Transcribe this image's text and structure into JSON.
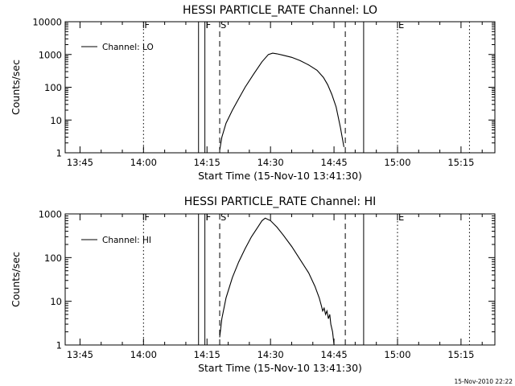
{
  "footer_timestamp": "15-Nov-2010 22:22",
  "chart_data": [
    {
      "type": "line",
      "title": "HESSI PARTICLE_RATE Channel: LO",
      "xlabel": "Start Time (15-Nov-10 13:41:30)",
      "ylabel": "Counts/sec",
      "x_ticks": [
        "13:45",
        "14:00",
        "14:15",
        "14:30",
        "14:45",
        "15:00",
        "15:15"
      ],
      "y_ticks": [
        "1",
        "10",
        "100",
        "1000",
        "10000"
      ],
      "y_scale": "log",
      "xlim": [
        "13:41:30",
        "15:23:00"
      ],
      "ylim": [
        1,
        10000
      ],
      "legend": {
        "label": "Channel: LO",
        "placement": "top-left"
      },
      "markers": [
        {
          "label": "F",
          "x": "14:00:00",
          "style": "dotted"
        },
        {
          "label": "",
          "x": "14:13:00",
          "style": "solid"
        },
        {
          "label": "F",
          "x": "14:14:30",
          "style": "solid"
        },
        {
          "label": "S",
          "x": "14:18:00",
          "style": "dashed"
        },
        {
          "label": "",
          "x": "14:47:40",
          "style": "dashed"
        },
        {
          "label": "",
          "x": "14:52:00",
          "style": "solid"
        },
        {
          "label": "E",
          "x": "15:00:00",
          "style": "dotted"
        },
        {
          "label": "",
          "x": "15:17:00",
          "style": "dotted"
        }
      ],
      "series": [
        {
          "name": "Channel: LO",
          "points": [
            [
              "14:18:00",
              1.2
            ],
            [
              "14:18:30",
              3
            ],
            [
              "14:19:30",
              8
            ],
            [
              "14:21:00",
              20
            ],
            [
              "14:22:30",
              45
            ],
            [
              "14:24:00",
              100
            ],
            [
              "14:26:00",
              250
            ],
            [
              "14:28:00",
              600
            ],
            [
              "14:29:30",
              1000
            ],
            [
              "14:30:30",
              1100
            ],
            [
              "14:31:30",
              1050
            ],
            [
              "14:33:00",
              950
            ],
            [
              "14:35:00",
              820
            ],
            [
              "14:37:00",
              650
            ],
            [
              "14:39:00",
              480
            ],
            [
              "14:41:00",
              330
            ],
            [
              "14:42:30",
              200
            ],
            [
              "14:43:30",
              120
            ],
            [
              "14:44:30",
              60
            ],
            [
              "14:45:30",
              25
            ],
            [
              "14:46:30",
              6
            ],
            [
              "14:47:20",
              1.5
            ]
          ]
        }
      ]
    },
    {
      "type": "line",
      "title": "HESSI PARTICLE_RATE Channel: HI",
      "xlabel": "Start Time (15-Nov-10 13:41:30)",
      "ylabel": "Counts/sec",
      "x_ticks": [
        "13:45",
        "14:00",
        "14:15",
        "14:30",
        "14:45",
        "15:00",
        "15:15"
      ],
      "y_ticks": [
        "1",
        "10",
        "100",
        "1000"
      ],
      "y_scale": "log",
      "xlim": [
        "13:41:30",
        "15:23:00"
      ],
      "ylim": [
        1,
        1000
      ],
      "legend": {
        "label": "Channel: HI",
        "placement": "top-left"
      },
      "markers": [
        {
          "label": "F",
          "x": "14:00:00",
          "style": "dotted"
        },
        {
          "label": "",
          "x": "14:13:00",
          "style": "solid"
        },
        {
          "label": "F",
          "x": "14:14:30",
          "style": "solid"
        },
        {
          "label": "S",
          "x": "14:18:00",
          "style": "dashed"
        },
        {
          "label": "",
          "x": "14:47:40",
          "style": "dashed"
        },
        {
          "label": "",
          "x": "14:52:00",
          "style": "solid"
        },
        {
          "label": "E",
          "x": "15:00:00",
          "style": "dotted"
        },
        {
          "label": "",
          "x": "15:17:00",
          "style": "dotted"
        }
      ],
      "series": [
        {
          "name": "Channel: HI",
          "points": [
            [
              "14:18:00",
              1.5
            ],
            [
              "14:18:30",
              4
            ],
            [
              "14:19:30",
              12
            ],
            [
              "14:21:00",
              35
            ],
            [
              "14:22:30",
              80
            ],
            [
              "14:24:00",
              160
            ],
            [
              "14:25:30",
              300
            ],
            [
              "14:27:00",
              500
            ],
            [
              "14:28:00",
              700
            ],
            [
              "14:28:45",
              800
            ],
            [
              "14:30:00",
              700
            ],
            [
              "14:31:30",
              500
            ],
            [
              "14:33:00",
              330
            ],
            [
              "14:35:00",
              180
            ],
            [
              "14:37:00",
              90
            ],
            [
              "14:39:00",
              45
            ],
            [
              "14:40:30",
              22
            ],
            [
              "14:41:30",
              12
            ],
            [
              "14:42:00",
              8
            ],
            [
              "14:42:20",
              6
            ],
            [
              "14:42:40",
              7
            ],
            [
              "14:43:00",
              5
            ],
            [
              "14:43:20",
              6
            ],
            [
              "14:43:40",
              4
            ],
            [
              "14:44:00",
              5
            ],
            [
              "14:44:15",
              3
            ],
            [
              "14:44:40",
              2
            ],
            [
              "14:45:00",
              1
            ]
          ]
        }
      ]
    }
  ]
}
